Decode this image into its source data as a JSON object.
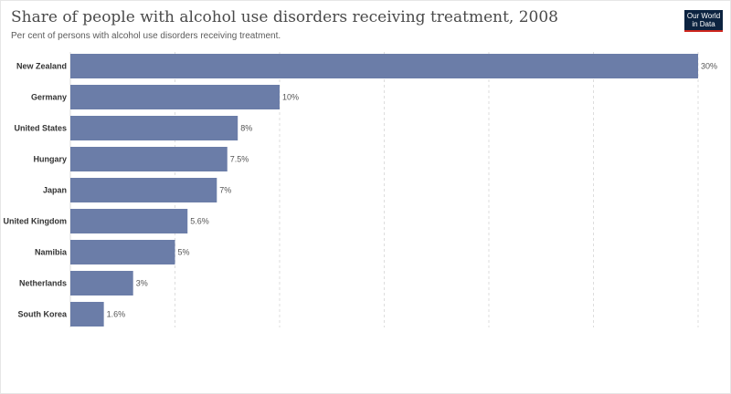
{
  "header": {
    "title": "Share of people with alcohol use disorders receiving treatment, 2008",
    "subtitle": "Per cent of persons with alcohol use disorders receiving treatment.",
    "logo_line1": "Our World",
    "logo_line2": "in Data"
  },
  "colors": {
    "bar": "#6b7da8",
    "grid": "#dddddd",
    "logo_bg": "#0c2340",
    "logo_accent": "#ce261e"
  },
  "chart_data": {
    "type": "bar",
    "orientation": "horizontal",
    "categories": [
      "New Zealand",
      "Germany",
      "United States",
      "Hungary",
      "Japan",
      "United Kingdom",
      "Namibia",
      "Netherlands",
      "South Korea"
    ],
    "values": [
      30,
      10,
      8,
      7.5,
      7,
      5.6,
      5,
      3,
      1.6
    ],
    "value_labels": [
      "30%",
      "10%",
      "8%",
      "7.5%",
      "7%",
      "5.6%",
      "5%",
      "3%",
      "1.6%"
    ],
    "xlim": [
      0,
      30
    ],
    "grid": true
  }
}
